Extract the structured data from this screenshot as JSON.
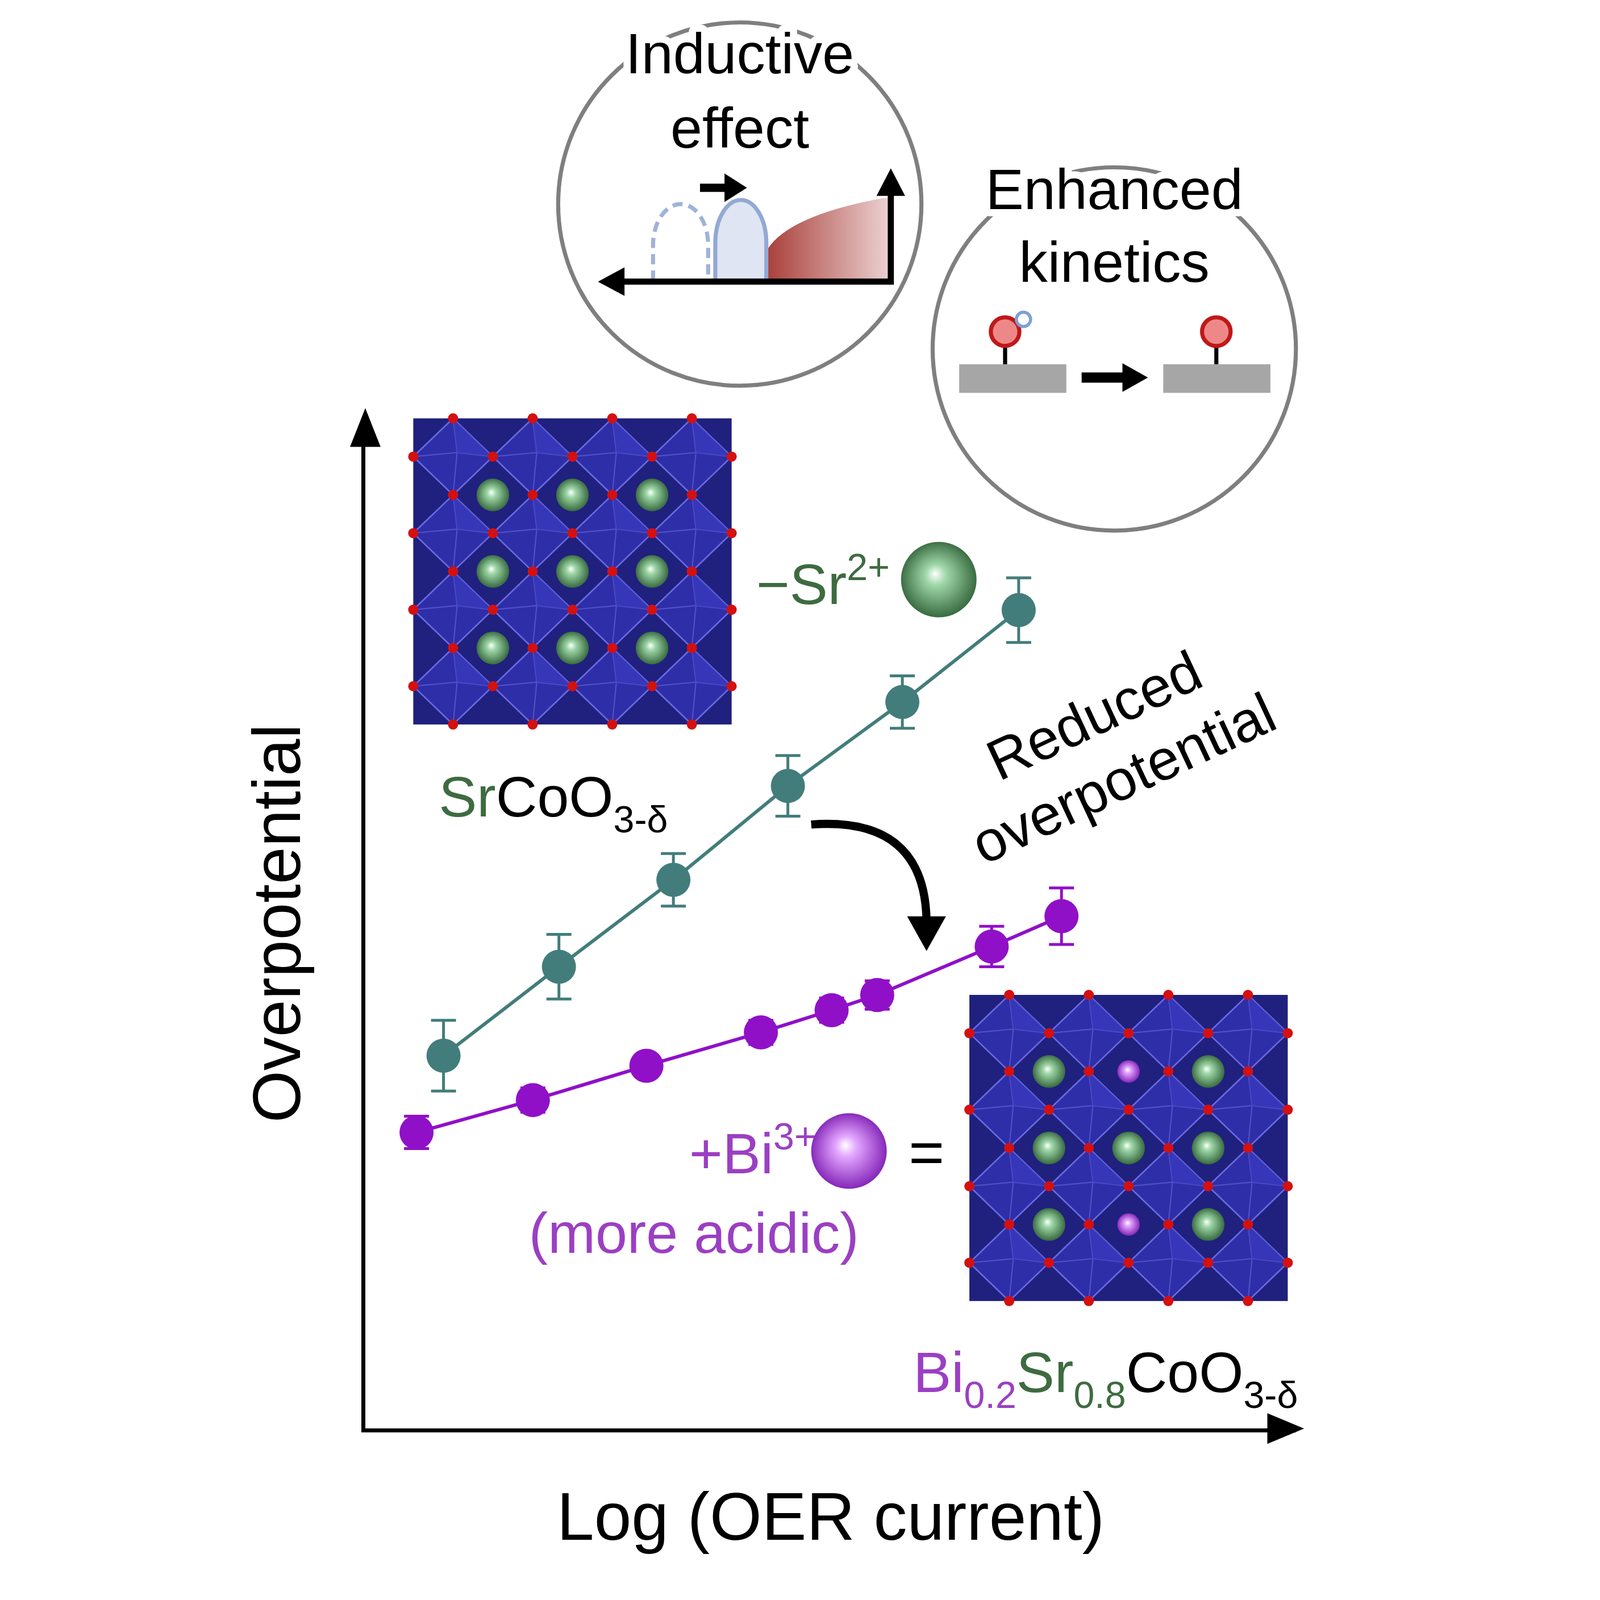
{
  "chart_data": {
    "type": "line",
    "xlabel": "Log (OER current)",
    "ylabel": "Overpotential",
    "xlim": [
      0,
      100
    ],
    "ylim": [
      0,
      100
    ],
    "xticks": [],
    "yticks": [],
    "tick_labels": false,
    "grid": false,
    "marker": "circle",
    "series": [
      {
        "name": "SrCoO3-δ",
        "color": "#427d7b",
        "x": [
          8.4,
          20.8,
          33.1,
          45.4,
          57.7,
          70.2
        ],
        "values": [
          36.9,
          45.7,
          54.3,
          63.6,
          71.9,
          81.0
        ],
        "errors": [
          3.5,
          3.2,
          2.6,
          3.0,
          2.6,
          3.2
        ]
      },
      {
        "name": "Bi0.2Sr0.8CoO3-δ",
        "color": "#9010c8",
        "x": [
          5.5,
          18.0,
          30.2,
          42.5,
          50.1,
          55.0,
          67.3,
          74.8
        ],
        "values": [
          29.3,
          32.5,
          35.9,
          39.2,
          41.4,
          42.9,
          47.7,
          50.7
        ],
        "errors": [
          1.6,
          1.2,
          1.0,
          1.2,
          1.2,
          1.4,
          2.0,
          2.8
        ]
      }
    ]
  },
  "annotations": {
    "removed_ion": "−Sr2+",
    "added_ion": "+Bi3+",
    "added_ion_note": "(more acidic)",
    "equals": "=",
    "arrow_label": [
      "Reduced",
      "overpotential"
    ]
  },
  "insets": [
    {
      "title": [
        "Inductive",
        "effect"
      ]
    },
    {
      "title": [
        "Enhanced",
        "kinetics"
      ]
    }
  ]
}
